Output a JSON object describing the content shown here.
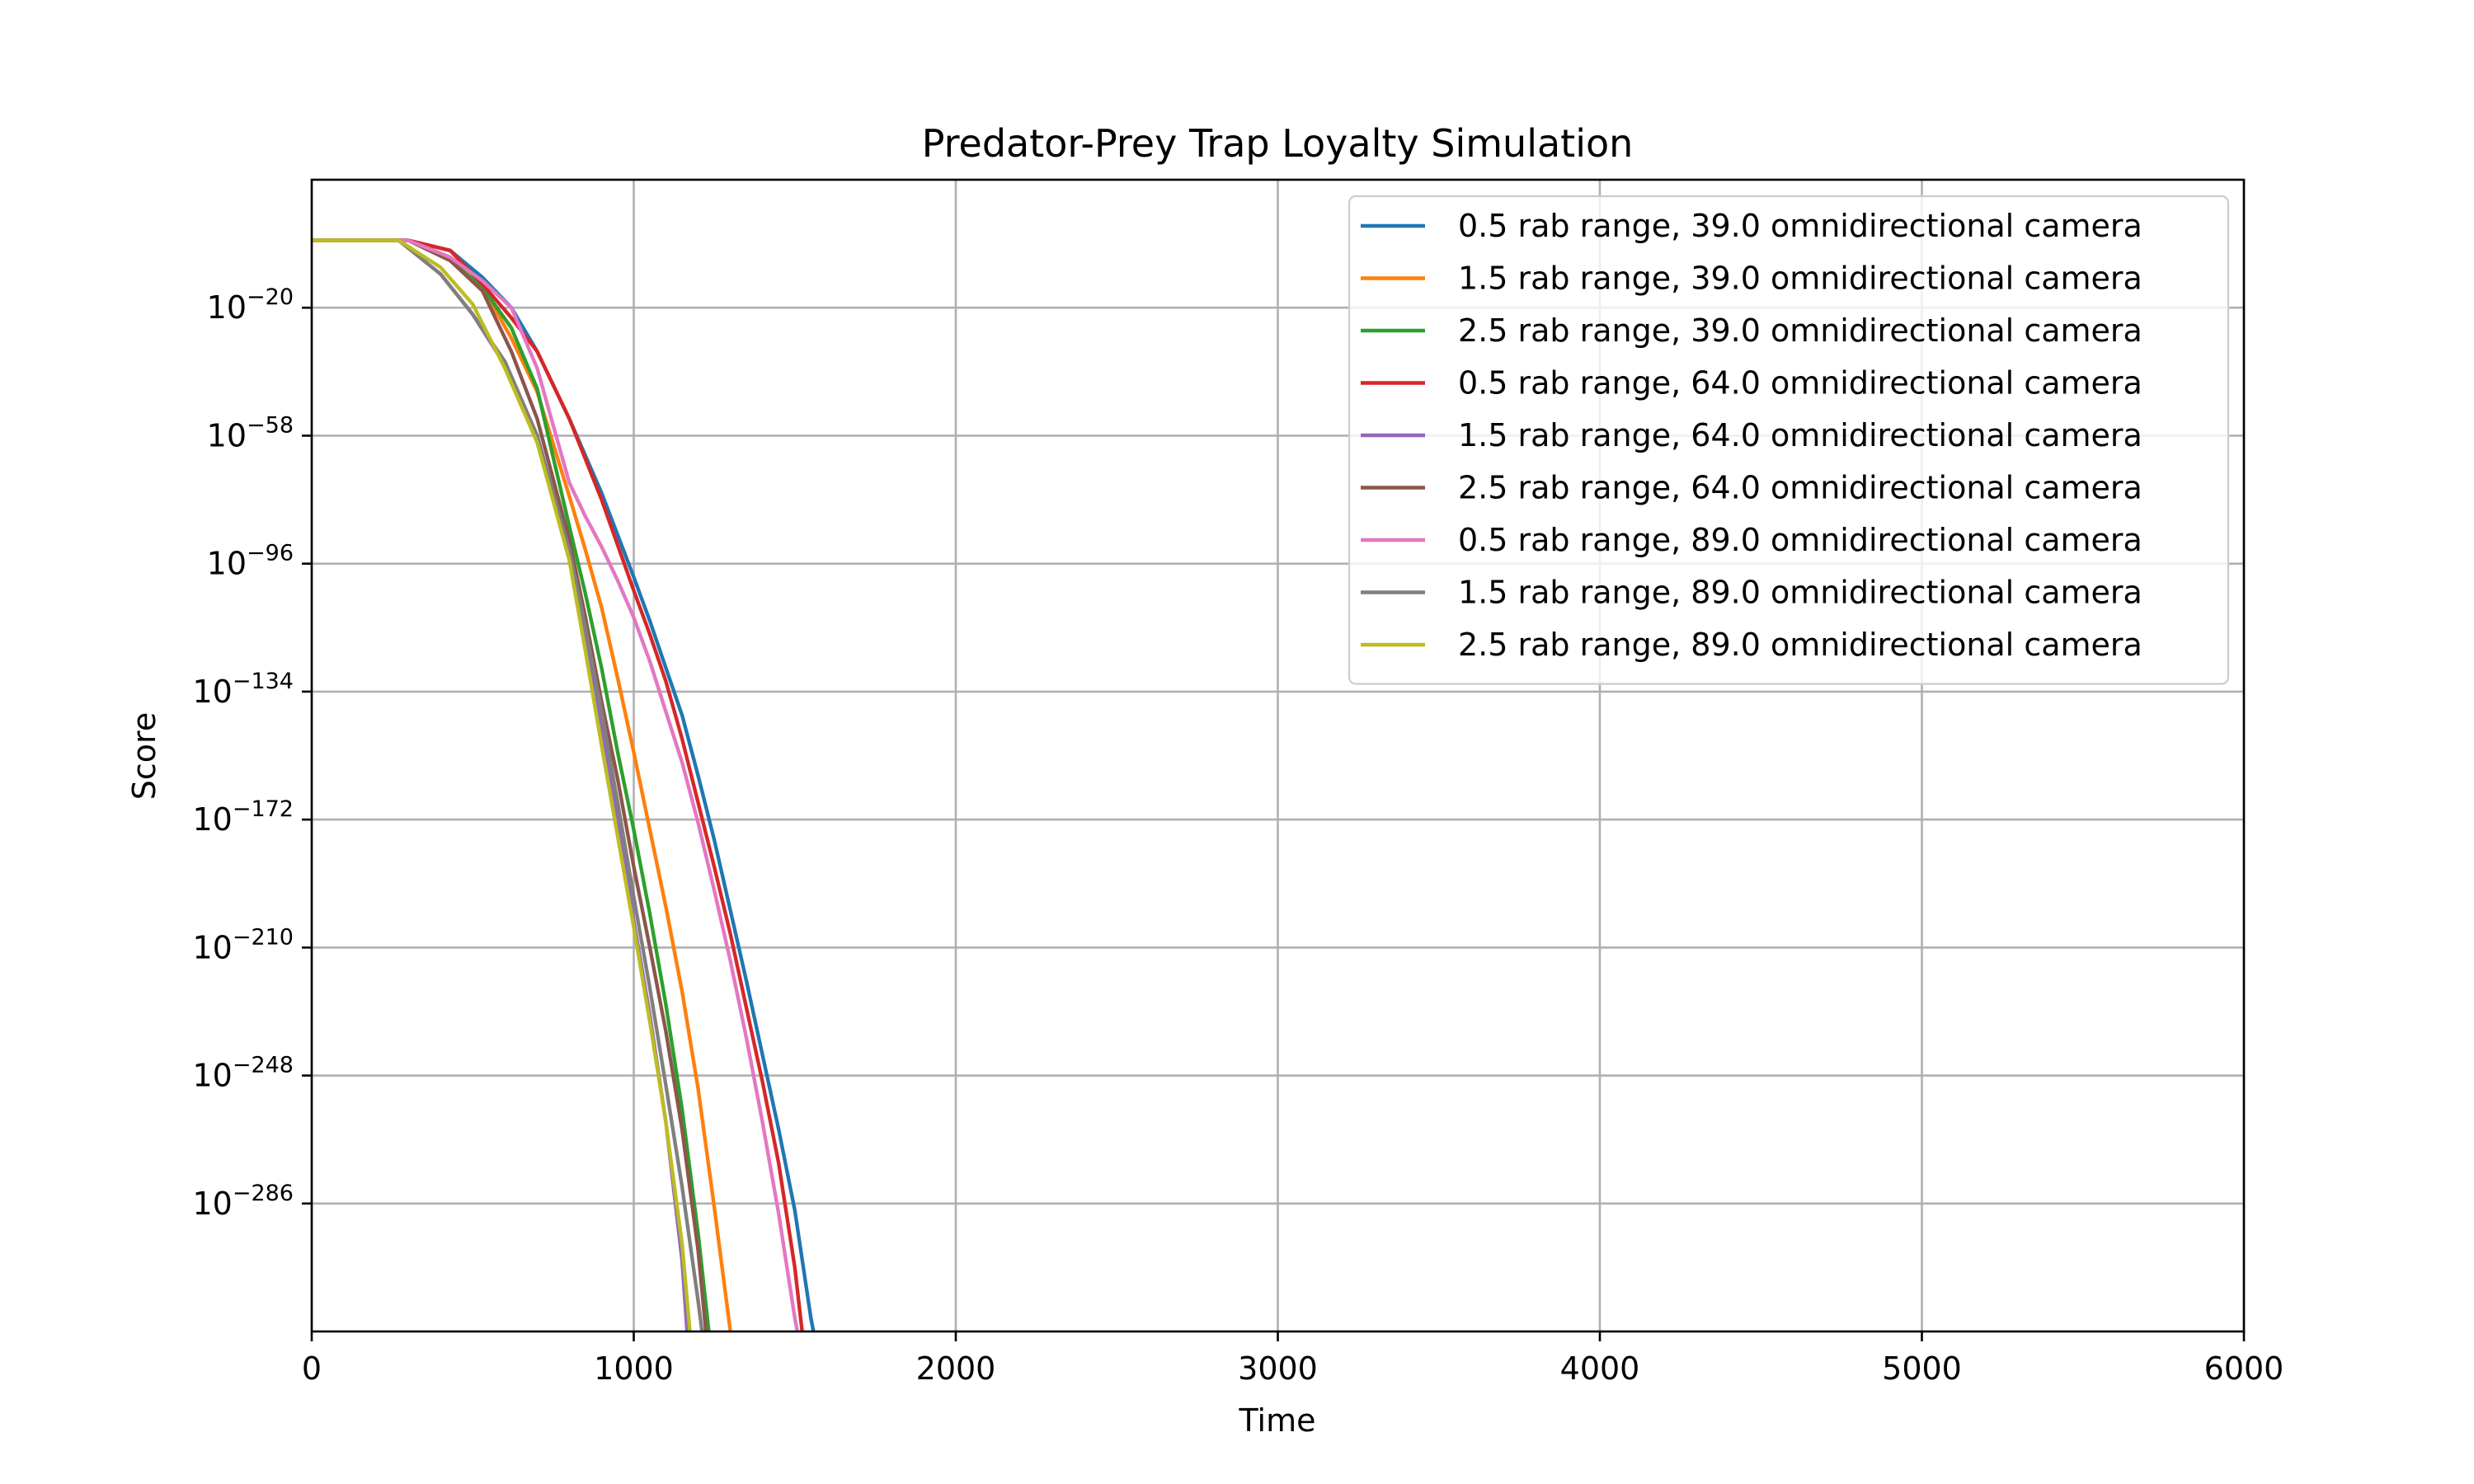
{
  "chart_data": {
    "type": "line",
    "title": "Predator-Prey Trap Loyalty Simulation",
    "xlabel": "Time",
    "ylabel": "Score",
    "y_scale": "log",
    "y_unit": "log10(Score)",
    "xlim": [
      0,
      6000
    ],
    "ylim_log10": [
      -324,
      18
    ],
    "x_ticks": [
      0,
      1000,
      2000,
      3000,
      4000,
      5000,
      6000
    ],
    "x_tick_labels": [
      "0",
      "1000",
      "2000",
      "3000",
      "4000",
      "5000",
      "6000"
    ],
    "y_ticks_log10": [
      -20,
      -58,
      -96,
      -134,
      -172,
      -210,
      -248,
      -286
    ],
    "y_tick_label_base": "10",
    "y_tick_label_exponents": [
      "−20",
      "−58",
      "−96",
      "−134",
      "−172",
      "−210",
      "−248",
      "−286"
    ],
    "grid": true,
    "legend_position": "top-right",
    "series": [
      {
        "name": "0.5 rab range, 39.0 omnidirectional camera",
        "color": "#1f77b4",
        "x": [
          0,
          300,
          430,
          530,
          620,
          700,
          800,
          900,
          1000,
          1050,
          1100,
          1150,
          1200,
          1250,
          1300,
          1350,
          1400,
          1450,
          1500,
          1550,
          1570
        ],
        "y_log10": [
          0,
          0,
          -3,
          -11,
          -20,
          -33,
          -53,
          -75,
          -100,
          -113,
          -127,
          -141,
          -159,
          -178,
          -199,
          -220,
          -242,
          -264,
          -288,
          -320,
          -330
        ]
      },
      {
        "name": "1.5 rab range, 39.0 omnidirectional camera",
        "color": "#ff7f0e",
        "x": [
          0,
          300,
          430,
          530,
          620,
          700,
          800,
          850,
          900,
          950,
          1000,
          1050,
          1100,
          1150,
          1200,
          1250,
          1300,
          1310
        ],
        "y_log10": [
          0,
          0,
          -5,
          -14,
          -29,
          -45,
          -76,
          -92,
          -109,
          -130,
          -152,
          -175,
          -198,
          -223,
          -252,
          -287,
          -324,
          -330
        ]
      },
      {
        "name": "2.5 rab range, 39.0 omnidirectional camera",
        "color": "#2ca02c",
        "x": [
          0,
          300,
          430,
          530,
          620,
          700,
          800,
          850,
          900,
          950,
          1000,
          1050,
          1100,
          1150,
          1200,
          1240
        ],
        "y_log10": [
          0,
          0,
          -6,
          -14,
          -26,
          -44,
          -85,
          -105,
          -127,
          -152,
          -175,
          -200,
          -227,
          -258,
          -295,
          -330
        ]
      },
      {
        "name": "0.5 rab range, 64.0 omnidirectional camera",
        "color": "#d62728",
        "x": [
          0,
          300,
          430,
          530,
          620,
          700,
          800,
          900,
          1000,
          1050,
          1100,
          1150,
          1200,
          1250,
          1300,
          1350,
          1400,
          1450,
          1500,
          1530
        ],
        "y_log10": [
          0,
          0,
          -3,
          -13,
          -23,
          -33,
          -53,
          -77,
          -104,
          -117,
          -131,
          -148,
          -167,
          -186,
          -206,
          -228,
          -250,
          -274,
          -305,
          -330
        ]
      },
      {
        "name": "1.5 rab range, 64.0 omnidirectional camera",
        "color": "#9467bd",
        "x": [
          0,
          270,
          400,
          500,
          600,
          700,
          800,
          850,
          900,
          950,
          1000,
          1050,
          1100,
          1150,
          1170
        ],
        "y_log10": [
          0,
          0,
          -10,
          -22,
          -37,
          -60,
          -94,
          -118,
          -144,
          -171,
          -202,
          -230,
          -262,
          -303,
          -330
        ]
      },
      {
        "name": "2.5 rab range, 64.0 omnidirectional camera",
        "color": "#8c564b",
        "x": [
          0,
          300,
          430,
          530,
          620,
          700,
          800,
          850,
          900,
          950,
          1000,
          1050,
          1100,
          1150,
          1200,
          1230
        ],
        "y_log10": [
          0,
          0,
          -6,
          -15,
          -33,
          -53,
          -89,
          -112,
          -137,
          -160,
          -186,
          -210,
          -235,
          -264,
          -300,
          -330
        ]
      },
      {
        "name": "0.5 rab range, 89.0 omnidirectional camera",
        "color": "#e377c2",
        "x": [
          0,
          300,
          430,
          530,
          620,
          700,
          750,
          800,
          850,
          900,
          950,
          1000,
          1050,
          1100,
          1150,
          1200,
          1250,
          1300,
          1350,
          1400,
          1450,
          1500,
          1520
        ],
        "y_log10": [
          0,
          0,
          -5,
          -12,
          -20,
          -38,
          -55,
          -72,
          -82,
          -91,
          -101,
          -112,
          -125,
          -140,
          -155,
          -173,
          -193,
          -214,
          -237,
          -262,
          -289,
          -320,
          -330
        ]
      },
      {
        "name": "1.5 rab range, 89.0 omnidirectional camera",
        "color": "#7f7f7f",
        "x": [
          0,
          270,
          400,
          500,
          600,
          700,
          800,
          850,
          900,
          950,
          1000,
          1050,
          1100,
          1150,
          1200,
          1220
        ],
        "y_log10": [
          0,
          0,
          -10,
          -22,
          -36,
          -58,
          -92,
          -115,
          -140,
          -167,
          -195,
          -222,
          -251,
          -281,
          -315,
          -330
        ]
      },
      {
        "name": "2.5 rab range, 89.0 omnidirectional camera",
        "color": "#bcbd22",
        "x": [
          0,
          270,
          400,
          500,
          600,
          700,
          800,
          850,
          900,
          950,
          1000,
          1050,
          1100,
          1150,
          1180
        ],
        "y_log10": [
          0,
          0,
          -8,
          -19,
          -38,
          -60,
          -95,
          -122,
          -150,
          -177,
          -204,
          -232,
          -262,
          -298,
          -330
        ]
      }
    ]
  }
}
